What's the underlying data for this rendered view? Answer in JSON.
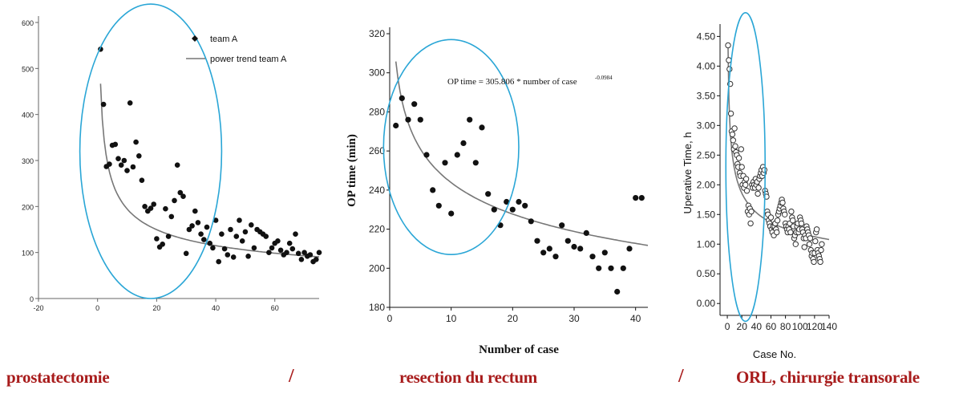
{
  "chart_data": [
    {
      "type": "scatter",
      "xlim": [
        -20,
        75
      ],
      "ylim": [
        0,
        600
      ],
      "xticks": [
        -20,
        0,
        20,
        40,
        60
      ],
      "yticks": [
        0,
        100,
        200,
        300,
        400,
        500,
        600
      ],
      "legend": {
        "position": "top-right",
        "marker_label": "team A",
        "line_label": "power trend team A"
      },
      "series": [
        {
          "name": "team A",
          "points": [
            [
              1,
              542
            ],
            [
              2,
              422
            ],
            [
              3,
              287
            ],
            [
              4,
              292
            ],
            [
              5,
              333
            ],
            [
              6,
              335
            ],
            [
              7,
              304
            ],
            [
              8,
              290
            ],
            [
              9,
              300
            ],
            [
              10,
              278
            ],
            [
              11,
              425
            ],
            [
              12,
              286
            ],
            [
              13,
              340
            ],
            [
              14,
              310
            ],
            [
              15,
              257
            ],
            [
              16,
              200
            ],
            [
              17,
              190
            ],
            [
              18,
              196
            ],
            [
              19,
              205
            ],
            [
              20,
              130
            ],
            [
              21,
              112
            ],
            [
              22,
              118
            ],
            [
              23,
              195
            ],
            [
              24,
              135
            ],
            [
              25,
              178
            ],
            [
              26,
              213
            ],
            [
              27,
              290
            ],
            [
              28,
              230
            ],
            [
              29,
              222
            ],
            [
              30,
              98
            ],
            [
              31,
              150
            ],
            [
              32,
              158
            ],
            [
              33,
              190
            ],
            [
              34,
              165
            ],
            [
              35,
              140
            ],
            [
              36,
              128
            ],
            [
              37,
              155
            ],
            [
              38,
              120
            ],
            [
              39,
              110
            ],
            [
              40,
              170
            ],
            [
              41,
              80
            ],
            [
              42,
              140
            ],
            [
              43,
              108
            ],
            [
              44,
              95
            ],
            [
              45,
              150
            ],
            [
              46,
              90
            ],
            [
              47,
              135
            ],
            [
              48,
              170
            ],
            [
              49,
              125
            ],
            [
              50,
              145
            ],
            [
              51,
              92
            ],
            [
              52,
              160
            ],
            [
              53,
              110
            ],
            [
              54,
              150
            ],
            [
              55,
              145
            ],
            [
              56,
              140
            ],
            [
              57,
              135
            ],
            [
              58,
              100
            ],
            [
              59,
              110
            ],
            [
              60,
              120
            ],
            [
              61,
              125
            ],
            [
              62,
              105
            ],
            [
              63,
              95
            ],
            [
              64,
              100
            ],
            [
              65,
              120
            ],
            [
              66,
              108
            ],
            [
              67,
              140
            ],
            [
              68,
              98
            ],
            [
              69,
              85
            ],
            [
              70,
              100
            ],
            [
              71,
              92
            ],
            [
              72,
              95
            ],
            [
              73,
              80
            ],
            [
              74,
              85
            ],
            [
              75,
              100
            ]
          ]
        },
        {
          "name": "power trend team A",
          "line": true,
          "equation": {
            "a": 467,
            "b": -0.38,
            "x0": 1
          }
        }
      ],
      "annotation_ellipse": {
        "cx": 18,
        "cy": 320,
        "rx": 24,
        "ry": 320
      }
    },
    {
      "type": "scatter",
      "xlim": [
        0,
        42
      ],
      "ylim": [
        180,
        320
      ],
      "xticks": [
        0,
        10,
        20,
        30,
        40
      ],
      "yticks": [
        180,
        200,
        220,
        240,
        260,
        280,
        300,
        320
      ],
      "xlabel": "Number of case",
      "ylabel": "OP time (min)",
      "annotation": {
        "text": "OP time = 305.806 * number of case",
        "exponent": "-0.0984"
      },
      "series": [
        {
          "name": "",
          "points": [
            [
              1,
              273
            ],
            [
              2,
              287
            ],
            [
              3,
              276
            ],
            [
              4,
              284
            ],
            [
              5,
              276
            ],
            [
              6,
              258
            ],
            [
              7,
              240
            ],
            [
              8,
              232
            ],
            [
              9,
              254
            ],
            [
              10,
              228
            ],
            [
              11,
              258
            ],
            [
              12,
              264
            ],
            [
              13,
              276
            ],
            [
              14,
              254
            ],
            [
              15,
              272
            ],
            [
              16,
              238
            ],
            [
              17,
              230
            ],
            [
              18,
              222
            ],
            [
              19,
              234
            ],
            [
              20,
              230
            ],
            [
              21,
              234
            ],
            [
              22,
              232
            ],
            [
              23,
              224
            ],
            [
              24,
              214
            ],
            [
              25,
              208
            ],
            [
              26,
              210
            ],
            [
              27,
              206
            ],
            [
              28,
              222
            ],
            [
              29,
              214
            ],
            [
              30,
              211
            ],
            [
              31,
              210
            ],
            [
              32,
              218
            ],
            [
              33,
              206
            ],
            [
              34,
              200
            ],
            [
              35,
              208
            ],
            [
              36,
              200
            ],
            [
              37,
              188
            ],
            [
              38,
              200
            ],
            [
              39,
              210
            ],
            [
              40,
              236
            ],
            [
              41,
              236
            ]
          ]
        },
        {
          "name": "",
          "line": true,
          "equation": {
            "a": 305.806,
            "b": -0.0984,
            "x0": 1
          }
        }
      ],
      "annotation_ellipse": {
        "cx": 10,
        "cy": 262,
        "rx": 11,
        "ry": 55
      }
    },
    {
      "type": "scatter",
      "xlim": [
        -10,
        140
      ],
      "ylim": [
        -0.2,
        4.6
      ],
      "xticks": [
        0,
        20,
        40,
        60,
        80,
        100,
        120,
        140
      ],
      "yticks": [
        0.0,
        0.5,
        1.0,
        1.5,
        2.0,
        2.5,
        3.0,
        3.5,
        4.0,
        4.5
      ],
      "ytick_labels": [
        "0.00",
        "0.50",
        "1.00",
        "1.50",
        "2.00",
        "2.50",
        "3.00",
        "3.50",
        "4.00",
        "4.50"
      ],
      "xlabel": "Case No.",
      "ylabel": "Uperative Time, h",
      "series": [
        {
          "name": "",
          "points": [
            [
              1,
              4.35
            ],
            [
              2,
              4.1
            ],
            [
              3,
              3.95
            ],
            [
              4,
              3.7
            ],
            [
              5,
              3.2
            ],
            [
              6,
              2.9
            ],
            [
              7,
              2.85
            ],
            [
              8,
              2.75
            ],
            [
              9,
              2.6
            ],
            [
              10,
              2.95
            ],
            [
              11,
              2.65
            ],
            [
              12,
              2.55
            ],
            [
              13,
              2.5
            ],
            [
              14,
              2.35
            ],
            [
              15,
              2.3
            ],
            [
              16,
              2.45
            ],
            [
              17,
              2.2
            ],
            [
              18,
              2.15
            ],
            [
              19,
              2.6
            ],
            [
              20,
              2.3
            ],
            [
              21,
              2.0
            ],
            [
              22,
              2.15
            ],
            [
              23,
              1.95
            ],
            [
              24,
              2.05
            ],
            [
              25,
              2.0
            ],
            [
              26,
              2.1
            ],
            [
              27,
              1.9
            ],
            [
              28,
              1.55
            ],
            [
              29,
              1.65
            ],
            [
              30,
              1.5
            ],
            [
              31,
              1.6
            ],
            [
              32,
              1.35
            ],
            [
              33,
              1.55
            ],
            [
              34,
              2.0
            ],
            [
              35,
              1.95
            ],
            [
              36,
              2.05
            ],
            [
              37,
              2.0
            ],
            [
              38,
              1.95
            ],
            [
              39,
              2.1
            ],
            [
              40,
              2.0
            ],
            [
              41,
              2.05
            ],
            [
              42,
              1.85
            ],
            [
              43,
              1.95
            ],
            [
              44,
              2.1
            ],
            [
              45,
              2.15
            ],
            [
              46,
              2.2
            ],
            [
              47,
              2.25
            ],
            [
              48,
              2.15
            ],
            [
              49,
              2.3
            ],
            [
              50,
              2.2
            ],
            [
              51,
              2.25
            ],
            [
              52,
              1.9
            ],
            [
              53,
              1.85
            ],
            [
              54,
              1.8
            ],
            [
              55,
              1.55
            ],
            [
              56,
              1.5
            ],
            [
              57,
              1.4
            ],
            [
              58,
              1.35
            ],
            [
              59,
              1.3
            ],
            [
              60,
              1.45
            ],
            [
              61,
              1.25
            ],
            [
              62,
              1.2
            ],
            [
              63,
              1.3
            ],
            [
              64,
              1.15
            ],
            [
              65,
              1.3
            ],
            [
              66,
              1.35
            ],
            [
              67,
              1.25
            ],
            [
              68,
              1.2
            ],
            [
              69,
              1.4
            ],
            [
              70,
              1.5
            ],
            [
              71,
              1.55
            ],
            [
              72,
              1.6
            ],
            [
              73,
              1.65
            ],
            [
              74,
              1.7
            ],
            [
              75,
              1.75
            ],
            [
              76,
              1.7
            ],
            [
              77,
              1.6
            ],
            [
              78,
              1.55
            ],
            [
              79,
              1.5
            ],
            [
              80,
              1.35
            ],
            [
              81,
              1.3
            ],
            [
              82,
              1.25
            ],
            [
              83,
              1.2
            ],
            [
              84,
              1.3
            ],
            [
              85,
              1.25
            ],
            [
              86,
              1.35
            ],
            [
              87,
              1.2
            ],
            [
              88,
              1.55
            ],
            [
              89,
              1.45
            ],
            [
              90,
              1.4
            ],
            [
              91,
              1.3
            ],
            [
              92,
              1.1
            ],
            [
              93,
              1.15
            ],
            [
              94,
              1.0
            ],
            [
              95,
              1.2
            ],
            [
              96,
              1.3
            ],
            [
              97,
              1.35
            ],
            [
              98,
              1.2
            ],
            [
              99,
              1.25
            ],
            [
              100,
              1.45
            ],
            [
              101,
              1.4
            ],
            [
              102,
              1.35
            ],
            [
              103,
              1.25
            ],
            [
              104,
              1.2
            ],
            [
              105,
              1.1
            ],
            [
              106,
              0.95
            ],
            [
              107,
              1.15
            ],
            [
              108,
              1.1
            ],
            [
              109,
              1.3
            ],
            [
              110,
              1.25
            ],
            [
              111,
              1.2
            ],
            [
              112,
              1.15
            ],
            [
              113,
              1.0
            ],
            [
              114,
              1.1
            ],
            [
              115,
              0.9
            ],
            [
              116,
              0.8
            ],
            [
              117,
              0.85
            ],
            [
              118,
              0.75
            ],
            [
              119,
              0.7
            ],
            [
              120,
              0.85
            ],
            [
              121,
              1.05
            ],
            [
              122,
              1.2
            ],
            [
              123,
              1.25
            ],
            [
              124,
              0.9
            ],
            [
              125,
              0.85
            ],
            [
              126,
              0.8
            ],
            [
              127,
              0.75
            ],
            [
              128,
              0.7
            ],
            [
              129,
              0.9
            ],
            [
              130,
              1.0
            ]
          ]
        },
        {
          "name": "",
          "line": true,
          "equation": {
            "a": 4.3,
            "b": -0.28,
            "x0": 1
          }
        }
      ],
      "annotation_ellipse": {
        "cx": 25,
        "cy": 2.3,
        "rx": 27,
        "ry": 2.6
      }
    }
  ],
  "captions": {
    "left": "prostatectomie",
    "slash1": "/",
    "middle": "resection du rectum",
    "slash2": "/",
    "right": "ORL, chirurgie transorale"
  },
  "colors": {
    "ellipse": "#2aa6d6",
    "caption": "#a81c1c",
    "marker": "#111111",
    "trend": "#777777"
  }
}
